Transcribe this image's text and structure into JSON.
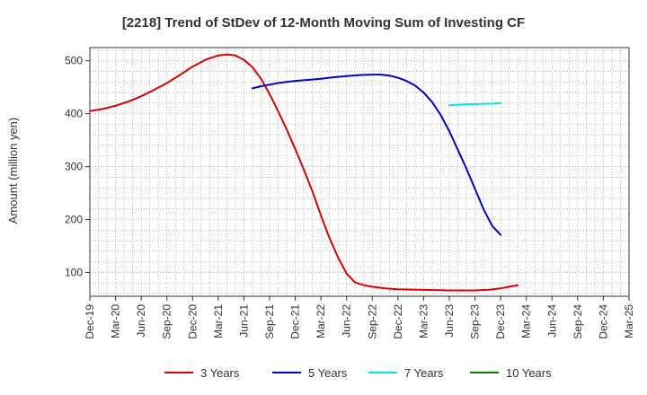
{
  "chart_data": {
    "type": "line",
    "title": "[2218]  Trend of StDev of 12-Month Moving Sum of Investing CF",
    "xlabel": "",
    "ylabel": "Amount (million yen)",
    "ylim": [
      55,
      525
    ],
    "yticks": [
      100,
      200,
      300,
      400,
      500
    ],
    "x_categories": [
      "Dec-19",
      "Mar-20",
      "Jun-20",
      "Sep-20",
      "Dec-20",
      "Mar-21",
      "Jun-21",
      "Sep-21",
      "Dec-21",
      "Mar-22",
      "Jun-22",
      "Sep-22",
      "Dec-22",
      "Mar-23",
      "Jun-23",
      "Sep-23",
      "Dec-23",
      "Mar-24",
      "Jun-24",
      "Sep-24",
      "Dec-24",
      "Mar-25"
    ],
    "grid": true,
    "legend_position": "bottom",
    "series": [
      {
        "name": "3 Years",
        "color": "#dd0000",
        "points": [
          [
            0,
            405
          ],
          [
            0.5,
            409
          ],
          [
            1,
            415
          ],
          [
            1.5,
            423
          ],
          [
            2,
            433
          ],
          [
            2.5,
            445
          ],
          [
            3,
            458
          ],
          [
            3.5,
            473
          ],
          [
            4,
            489
          ],
          [
            4.5,
            502
          ],
          [
            5,
            510
          ],
          [
            5.33,
            512
          ],
          [
            5.67,
            510
          ],
          [
            6,
            502
          ],
          [
            6.33,
            488
          ],
          [
            6.67,
            466
          ],
          [
            7,
            437
          ],
          [
            7.33,
            405
          ],
          [
            7.67,
            370
          ],
          [
            8,
            333
          ],
          [
            8.33,
            295
          ],
          [
            8.67,
            253
          ],
          [
            9,
            208
          ],
          [
            9.33,
            165
          ],
          [
            9.67,
            128
          ],
          [
            10,
            98
          ],
          [
            10.33,
            81
          ],
          [
            10.67,
            76
          ],
          [
            11,
            73
          ],
          [
            11.5,
            70
          ],
          [
            12,
            68
          ],
          [
            13,
            67
          ],
          [
            14,
            66
          ],
          [
            15,
            66
          ],
          [
            15.5,
            67
          ],
          [
            16,
            70
          ],
          [
            16.33,
            73
          ],
          [
            16.67,
            76
          ]
        ]
      },
      {
        "name": "5 Years",
        "color": "#0000cc",
        "points": [
          [
            6.33,
            448
          ],
          [
            6.67,
            452
          ],
          [
            7,
            455
          ],
          [
            7.33,
            458
          ],
          [
            7.67,
            460
          ],
          [
            8,
            462
          ],
          [
            8.5,
            464
          ],
          [
            9,
            466
          ],
          [
            9.5,
            469
          ],
          [
            10,
            471
          ],
          [
            10.5,
            473
          ],
          [
            11,
            474
          ],
          [
            11.33,
            474
          ],
          [
            11.67,
            472
          ],
          [
            12,
            468
          ],
          [
            12.33,
            462
          ],
          [
            12.67,
            453
          ],
          [
            13,
            440
          ],
          [
            13.33,
            422
          ],
          [
            13.67,
            397
          ],
          [
            14,
            367
          ],
          [
            14.33,
            332
          ],
          [
            14.67,
            296
          ],
          [
            15,
            258
          ],
          [
            15.33,
            220
          ],
          [
            15.67,
            188
          ],
          [
            16,
            171
          ]
        ]
      },
      {
        "name": "7 Years",
        "color": "#00e5ee",
        "points": [
          [
            14,
            416
          ],
          [
            14.33,
            417
          ],
          [
            14.67,
            418
          ],
          [
            15,
            418
          ],
          [
            15.33,
            419
          ],
          [
            15.67,
            419
          ],
          [
            16,
            420
          ]
        ]
      },
      {
        "name": "10 Years",
        "color": "#008000",
        "points": []
      }
    ]
  }
}
